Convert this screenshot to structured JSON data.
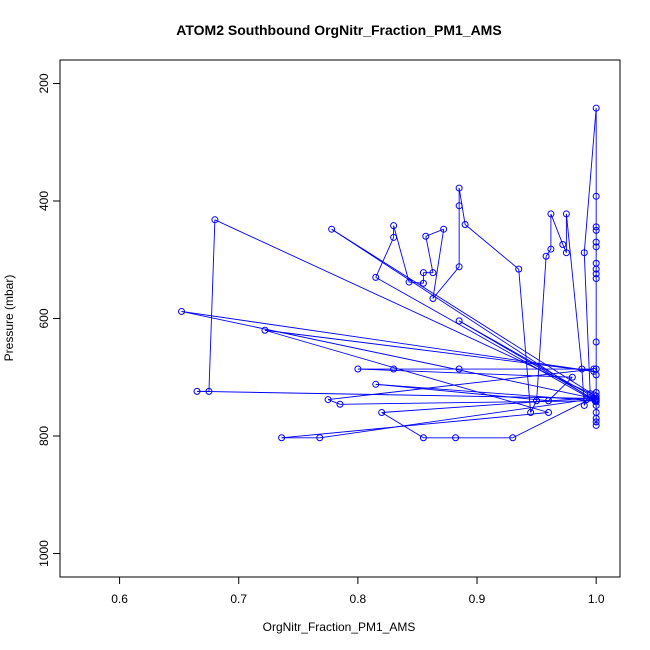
{
  "chart_data": {
    "type": "line",
    "title": "ATOM2 Southbound OrgNitr_Fraction_PM1_AMS",
    "xlabel": "OrgNitr_Fraction_PM1_AMS",
    "ylabel": "Pressure (mbar)",
    "xlim": [
      0.55,
      1.02
    ],
    "ylim": [
      1040,
      160
    ],
    "y_reversed": true,
    "x_ticks": [
      "0.6",
      "0.7",
      "0.8",
      "0.9",
      "1.0"
    ],
    "x_tick_values": [
      0.6,
      0.7,
      0.8,
      0.9,
      1.0
    ],
    "y_ticks": [
      "200",
      "400",
      "600",
      "800",
      "1000"
    ],
    "y_tick_values": [
      200,
      400,
      600,
      800,
      1000
    ],
    "grid": false,
    "legend": "none",
    "series": [
      {
        "color": "#0000ff",
        "marker": "open-circle",
        "points": [
          [
            1.0,
            782
          ],
          [
            1.0,
            776
          ],
          [
            1.0,
            770
          ],
          [
            1.0,
            760
          ],
          [
            1.0,
            748
          ],
          [
            1.0,
            738
          ],
          [
            1.0,
            732
          ],
          [
            0.93,
            803
          ],
          [
            0.882,
            803
          ],
          [
            0.855,
            803
          ],
          [
            0.82,
            760
          ],
          [
            0.998,
            735
          ],
          [
            0.999,
            740
          ],
          [
            0.815,
            712
          ],
          [
            0.96,
            740
          ],
          [
            0.98,
            700
          ],
          [
            0.8,
            686
          ],
          [
            0.83,
            686
          ],
          [
            0.885,
            686
          ],
          [
            0.998,
            686
          ],
          [
            0.775,
            738
          ],
          [
            0.785,
            746
          ],
          [
            1.0,
            740
          ],
          [
            0.885,
            604
          ],
          [
            1.0,
            736
          ],
          [
            0.768,
            803
          ],
          [
            0.736,
            803
          ],
          [
            0.96,
            760
          ],
          [
            0.722,
            620
          ],
          [
            0.998,
            690
          ],
          [
            0.652,
            588
          ],
          [
            0.998,
            736
          ],
          [
            0.665,
            724
          ],
          [
            0.675,
            724
          ],
          [
            0.68,
            432
          ],
          [
            0.998,
            730
          ],
          [
            0.778,
            448
          ],
          [
            1.0,
            742
          ],
          [
            0.815,
            530
          ],
          [
            0.83,
            462
          ],
          [
            0.83,
            442
          ],
          [
            0.843,
            538
          ],
          [
            0.855,
            540
          ],
          [
            0.855,
            522
          ],
          [
            0.863,
            522
          ],
          [
            0.857,
            460
          ],
          [
            0.872,
            448
          ],
          [
            0.863,
            566
          ],
          [
            0.885,
            512
          ],
          [
            0.885,
            408
          ],
          [
            0.885,
            378
          ],
          [
            0.89,
            440
          ],
          [
            0.935,
            516
          ],
          [
            0.945,
            760
          ],
          [
            0.95,
            740
          ],
          [
            0.958,
            494
          ],
          [
            0.962,
            482
          ],
          [
            0.962,
            422
          ],
          [
            0.972,
            474
          ],
          [
            0.975,
            488
          ],
          [
            0.975,
            422
          ],
          [
            0.988,
            686
          ],
          [
            0.99,
            748
          ],
          [
            0.992,
            738
          ],
          [
            0.995,
            728
          ],
          [
            0.99,
            488
          ],
          [
            1.0,
            242
          ],
          [
            1.0,
            392
          ],
          [
            1.0,
            444
          ],
          [
            1.0,
            450
          ],
          [
            1.0,
            470
          ],
          [
            1.0,
            478
          ],
          [
            1.0,
            506
          ],
          [
            1.0,
            516
          ],
          [
            1.0,
            524
          ],
          [
            1.0,
            532
          ],
          [
            1.0,
            640
          ],
          [
            1.0,
            686
          ],
          [
            1.0,
            696
          ],
          [
            1.0,
            726
          ]
        ]
      }
    ]
  }
}
